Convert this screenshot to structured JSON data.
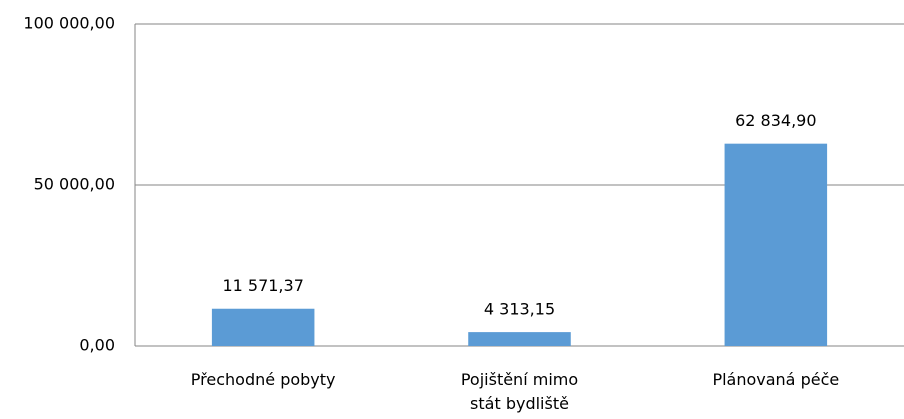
{
  "chart_data": {
    "type": "bar",
    "categories": [
      "Přechodné pobyty",
      "Pojištění mimo\nstát bydliště",
      "Plánovaná péče"
    ],
    "values": [
      11571.37,
      4313.15,
      62834.9
    ],
    "value_labels": [
      "11 571,37",
      "4 313,15",
      "62 834,90"
    ],
    "color": "#5b9bd5",
    "ylim": [
      0,
      100000
    ],
    "yticks": [
      {
        "value": 0,
        "label": "0,00"
      },
      {
        "value": 50000,
        "label": "50 000,00"
      },
      {
        "value": 100000,
        "label": "100 000,00"
      }
    ],
    "grid": true
  }
}
